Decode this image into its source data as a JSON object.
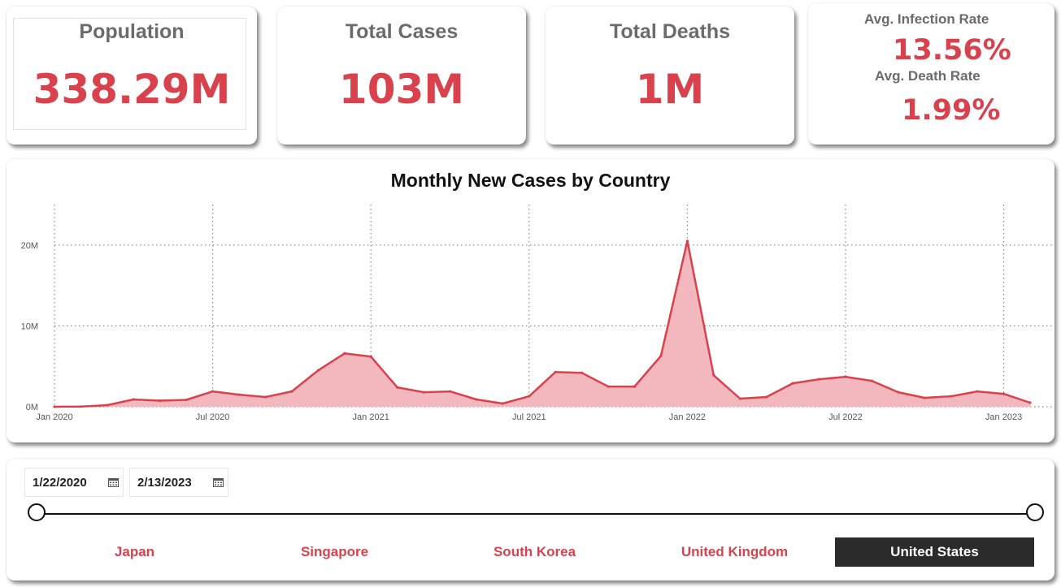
{
  "kpis": {
    "population": {
      "title": "Population",
      "value": "338.29M"
    },
    "total_cases": {
      "title": "Total Cases",
      "value": "103M"
    },
    "total_deaths": {
      "title": "Total Deaths",
      "value": "1M"
    },
    "infection_rate": {
      "title": "Avg. Infection Rate",
      "value": "13.56%"
    },
    "death_rate": {
      "title": "Avg. Death Rate",
      "value": "1.99%"
    }
  },
  "colors": {
    "accent": "#d9414d",
    "area_fill": "#f2b8bd",
    "selected_bg": "#2b2b2b"
  },
  "chart_data": {
    "type": "area",
    "title": "Monthly New Cases by Country",
    "xlabel": "",
    "ylabel": "",
    "ylim": [
      0,
      25000000
    ],
    "y_ticks": [
      {
        "value": 0,
        "label": "0M"
      },
      {
        "value": 10000000,
        "label": "10M"
      },
      {
        "value": 20000000,
        "label": "20M"
      }
    ],
    "x_ticks": [
      {
        "index": 0,
        "label": "Jan 2020"
      },
      {
        "index": 6,
        "label": "Jul 2020"
      },
      {
        "index": 12,
        "label": "Jan 2021"
      },
      {
        "index": 18,
        "label": "Jul 2021"
      },
      {
        "index": 24,
        "label": "Jan 2022"
      },
      {
        "index": 30,
        "label": "Jul 2022"
      },
      {
        "index": 36,
        "label": "Jan 2023"
      }
    ],
    "grid": true,
    "x": [
      "2020-01",
      "2020-02",
      "2020-03",
      "2020-04",
      "2020-05",
      "2020-06",
      "2020-07",
      "2020-08",
      "2020-09",
      "2020-10",
      "2020-11",
      "2020-12",
      "2021-01",
      "2021-02",
      "2021-03",
      "2021-04",
      "2021-05",
      "2021-06",
      "2021-07",
      "2021-08",
      "2021-09",
      "2021-10",
      "2021-11",
      "2021-12",
      "2022-01",
      "2022-02",
      "2022-03",
      "2022-04",
      "2022-05",
      "2022-06",
      "2022-07",
      "2022-08",
      "2022-09",
      "2022-10",
      "2022-11",
      "2022-12",
      "2023-01",
      "2023-02"
    ],
    "series": [
      {
        "values": [
          0,
          20000,
          200000,
          900000,
          750000,
          850000,
          1900000,
          1500000,
          1200000,
          1900000,
          4500000,
          6600000,
          6200000,
          2400000,
          1800000,
          1900000,
          900000,
          400000,
          1300000,
          4300000,
          4200000,
          2500000,
          2500000,
          6300000,
          20500000,
          3900000,
          1000000,
          1200000,
          2900000,
          3400000,
          3700000,
          3200000,
          1800000,
          1100000,
          1300000,
          1900000,
          1600000,
          500000
        ]
      }
    ]
  },
  "filters": {
    "start_date": "1/22/2020",
    "end_date": "2/13/2023",
    "countries": [
      "Japan",
      "Singapore",
      "South Korea",
      "United Kingdom",
      "United States"
    ],
    "selected_country": "United States"
  }
}
